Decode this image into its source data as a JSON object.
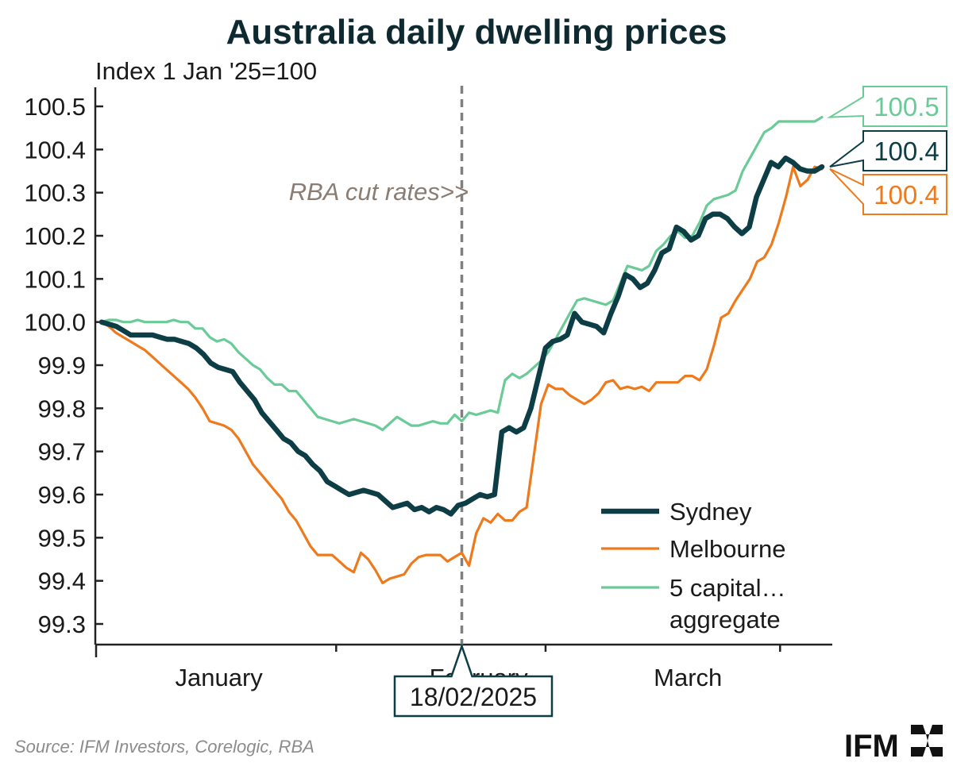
{
  "chart_data": {
    "type": "line",
    "title": "Australia daily dwelling prices",
    "ylabel": "Index 1 Jan '25=100",
    "ylim": [
      99.25,
      100.53
    ],
    "yticks": [
      "100.5",
      "100.4",
      "100.3",
      "100.2",
      "100.1",
      "100.0",
      "99.9",
      "99.8",
      "99.7",
      "99.6",
      "99.5",
      "99.4",
      "99.3"
    ],
    "xlim": [
      0,
      86
    ],
    "x_month_labels": [
      {
        "label": "January",
        "x": 14
      },
      {
        "label": "February",
        "x": 45
      },
      {
        "label": "March",
        "x": 70
      }
    ],
    "x_ticks": [
      0,
      28,
      53,
      81
    ],
    "vertical_marker": {
      "x": 43,
      "label": "RBA cut rates>>",
      "date_label": "18/02/2025"
    },
    "series": [
      {
        "name": "Sydney",
        "color": "#0d3d45",
        "end_label": "100.4",
        "values": [
          100.0,
          99.995,
          99.99,
          99.98,
          99.97,
          99.97,
          99.97,
          99.97,
          99.965,
          99.96,
          99.96,
          99.955,
          99.95,
          99.94,
          99.925,
          99.905,
          99.895,
          99.89,
          99.885,
          99.86,
          99.84,
          99.82,
          99.79,
          99.77,
          99.75,
          99.73,
          99.72,
          99.7,
          99.69,
          99.67,
          99.655,
          99.63,
          99.62,
          99.61,
          99.6,
          99.605,
          99.61,
          99.605,
          99.6,
          99.585,
          99.57,
          99.575,
          99.58,
          99.565,
          99.57,
          99.56,
          99.57,
          99.565,
          99.555,
          99.575,
          99.58,
          99.59,
          99.6,
          99.595,
          99.6,
          99.745,
          99.755,
          99.745,
          99.755,
          99.8,
          99.87,
          99.94,
          99.955,
          99.96,
          99.97,
          100.02,
          100.0,
          99.995,
          99.99,
          99.975,
          100.02,
          100.06,
          100.11,
          100.1,
          100.08,
          100.09,
          100.12,
          100.16,
          100.17,
          100.22,
          100.21,
          100.19,
          100.2,
          100.24,
          100.25,
          100.25,
          100.24,
          100.22,
          100.205,
          100.22,
          100.29,
          100.33,
          100.37,
          100.36,
          100.38,
          100.37,
          100.355,
          100.35,
          100.35,
          100.36
        ]
      },
      {
        "name": "Melbourne",
        "color": "#ee7a1e",
        "end_label": "100.4",
        "values": [
          100.0,
          99.99,
          99.975,
          99.965,
          99.955,
          99.945,
          99.935,
          99.92,
          99.905,
          99.89,
          99.875,
          99.86,
          99.845,
          99.825,
          99.8,
          99.77,
          99.765,
          99.76,
          99.75,
          99.73,
          99.7,
          99.67,
          99.65,
          99.63,
          99.61,
          99.59,
          99.56,
          99.54,
          99.51,
          99.48,
          99.46,
          99.46,
          99.46,
          99.445,
          99.43,
          99.42,
          99.465,
          99.45,
          99.425,
          99.395,
          99.405,
          99.41,
          99.415,
          99.44,
          99.455,
          99.46,
          99.46,
          99.46,
          99.445,
          99.455,
          99.465,
          99.435,
          99.51,
          99.545,
          99.535,
          99.555,
          99.54,
          99.54,
          99.56,
          99.57,
          99.69,
          99.81,
          99.855,
          99.845,
          99.845,
          99.83,
          99.82,
          99.81,
          99.82,
          99.835,
          99.86,
          99.865,
          99.845,
          99.85,
          99.845,
          99.85,
          99.84,
          99.86,
          99.86,
          99.86,
          99.86,
          99.875,
          99.875,
          99.865,
          99.89,
          99.945,
          100.01,
          100.02,
          100.05,
          100.075,
          100.1,
          100.14,
          100.15,
          100.18,
          100.23,
          100.29,
          100.36,
          100.315,
          100.33,
          100.36,
          100.355
        ]
      },
      {
        "name": "5 capital… aggregate",
        "legend_lines": [
          "5 capital…",
          "aggregate"
        ],
        "color": "#6bcb98",
        "end_label": "100.5",
        "values": [
          100.0,
          100.005,
          100.005,
          100.0,
          100.0,
          100.005,
          100.0,
          100.0,
          100.0,
          100.0,
          100.005,
          100.0,
          100.0,
          99.985,
          99.985,
          99.965,
          99.955,
          99.96,
          99.95,
          99.93,
          99.915,
          99.9,
          99.89,
          99.87,
          99.855,
          99.855,
          99.84,
          99.84,
          99.82,
          99.8,
          99.78,
          99.775,
          99.77,
          99.765,
          99.77,
          99.775,
          99.77,
          99.765,
          99.76,
          99.75,
          99.765,
          99.78,
          99.77,
          99.76,
          99.76,
          99.765,
          99.77,
          99.765,
          99.765,
          99.785,
          99.77,
          99.79,
          99.785,
          99.79,
          99.795,
          99.79,
          99.865,
          99.88,
          99.87,
          99.88,
          99.895,
          99.91,
          99.93,
          99.96,
          99.99,
          100.02,
          100.05,
          100.055,
          100.05,
          100.045,
          100.04,
          100.05,
          100.09,
          100.13,
          100.125,
          100.12,
          100.13,
          100.165,
          100.18,
          100.2,
          100.21,
          100.195,
          100.2,
          100.23,
          100.27,
          100.285,
          100.29,
          100.295,
          100.305,
          100.35,
          100.38,
          100.41,
          100.44,
          100.45,
          100.465,
          100.465,
          100.465,
          100.465,
          100.465,
          100.465,
          100.475
        ]
      }
    ]
  },
  "footer": {
    "source": "Source: IFM Investors, Corelogic, RBA",
    "logo_text": "IFM"
  }
}
